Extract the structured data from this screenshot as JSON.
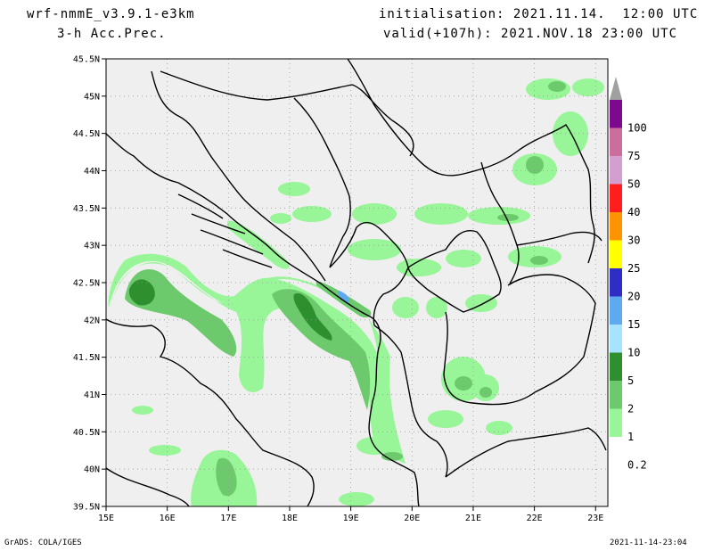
{
  "header": {
    "model": "wrf-nmmE_v3.9.1-e3km",
    "field": "3-h Acc.Prec.",
    "init": "initialisation: 2021.11.14.  12:00 UTC",
    "valid": "valid(+107h): 2021.NOV.18 23:00 UTC"
  },
  "map": {
    "lat_labels": [
      "45.5N",
      "45N",
      "44.5N",
      "44N",
      "43.5N",
      "43N",
      "42.5N",
      "42N",
      "41.5N",
      "41N",
      "40.5N",
      "40N",
      "39.5N"
    ],
    "lat_values": [
      45.5,
      45,
      44.5,
      44,
      43.5,
      43,
      42.5,
      42,
      41.5,
      41,
      40.5,
      40,
      39.5
    ],
    "lon_labels": [
      "15E",
      "16E",
      "17E",
      "18E",
      "19E",
      "20E",
      "21E",
      "22E",
      "23E"
    ],
    "lon_values": [
      15,
      16,
      17,
      18,
      19,
      20,
      21,
      22,
      23
    ],
    "lat_range": [
      39.5,
      45.5
    ],
    "lon_range": [
      15,
      23.2
    ],
    "grid": true
  },
  "legend": {
    "labels": [
      "100",
      "75",
      "50",
      "40",
      "30",
      "25",
      "20",
      "15",
      "10",
      "5",
      "2",
      "1",
      "0.2"
    ],
    "colors": [
      "#7d0a8e",
      "#cc6e9b",
      "#d39ed0",
      "#ff1d1d",
      "#ff9400",
      "#ffff00",
      "#2e2ec7",
      "#5daaf0",
      "#a8e3fe",
      "#2d8f2d",
      "#6cc96c",
      "#98f598",
      "#ffffff"
    ],
    "top_cap_color": "#a0a0a0"
  },
  "footer": {
    "credit": "GrADS: COLA/IGES",
    "timestamp": "2021-11-14-23:04"
  }
}
